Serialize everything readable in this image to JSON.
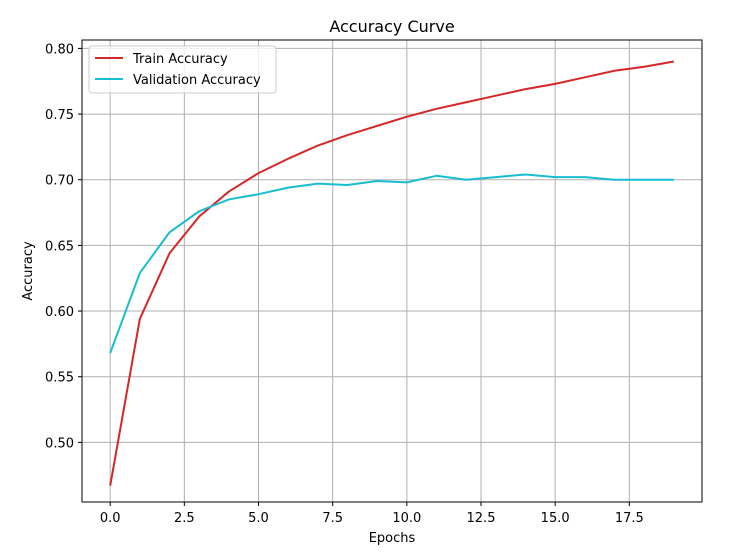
{
  "chart_data": {
    "type": "line",
    "title": "Accuracy Curve",
    "xlabel": "Epochs",
    "ylabel": "Accuracy",
    "xlim": [
      -0.95,
      19.95
    ],
    "ylim": [
      0.4546,
      0.8064
    ],
    "xticks": [
      0.0,
      2.5,
      5.0,
      7.5,
      10.0,
      12.5,
      15.0,
      17.5
    ],
    "xtick_labels": [
      "0.0",
      "2.5",
      "5.0",
      "7.5",
      "10.0",
      "12.5",
      "15.0",
      "17.5"
    ],
    "yticks": [
      0.5,
      0.55,
      0.6,
      0.65,
      0.7,
      0.75,
      0.8
    ],
    "ytick_labels": [
      "0.50",
      "0.55",
      "0.60",
      "0.65",
      "0.70",
      "0.75",
      "0.80"
    ],
    "grid": true,
    "legend_position": "top-left",
    "x": [
      0,
      1,
      2,
      3,
      4,
      5,
      6,
      7,
      8,
      9,
      10,
      11,
      12,
      13,
      14,
      15,
      16,
      17,
      18,
      19
    ],
    "series": [
      {
        "name": "Train Accuracy",
        "color": "#d62728",
        "values": [
          0.467,
          0.594,
          0.644,
          0.672,
          0.691,
          0.705,
          0.716,
          0.726,
          0.734,
          0.741,
          0.748,
          0.754,
          0.759,
          0.764,
          0.769,
          0.773,
          0.778,
          0.783,
          0.786,
          0.79
        ]
      },
      {
        "name": "Validation Accuracy",
        "color": "#17becf",
        "values": [
          0.568,
          0.629,
          0.66,
          0.676,
          0.685,
          0.689,
          0.694,
          0.697,
          0.696,
          0.699,
          0.698,
          0.703,
          0.7,
          0.702,
          0.704,
          0.702,
          0.702,
          0.7,
          0.7,
          0.7
        ]
      }
    ]
  }
}
